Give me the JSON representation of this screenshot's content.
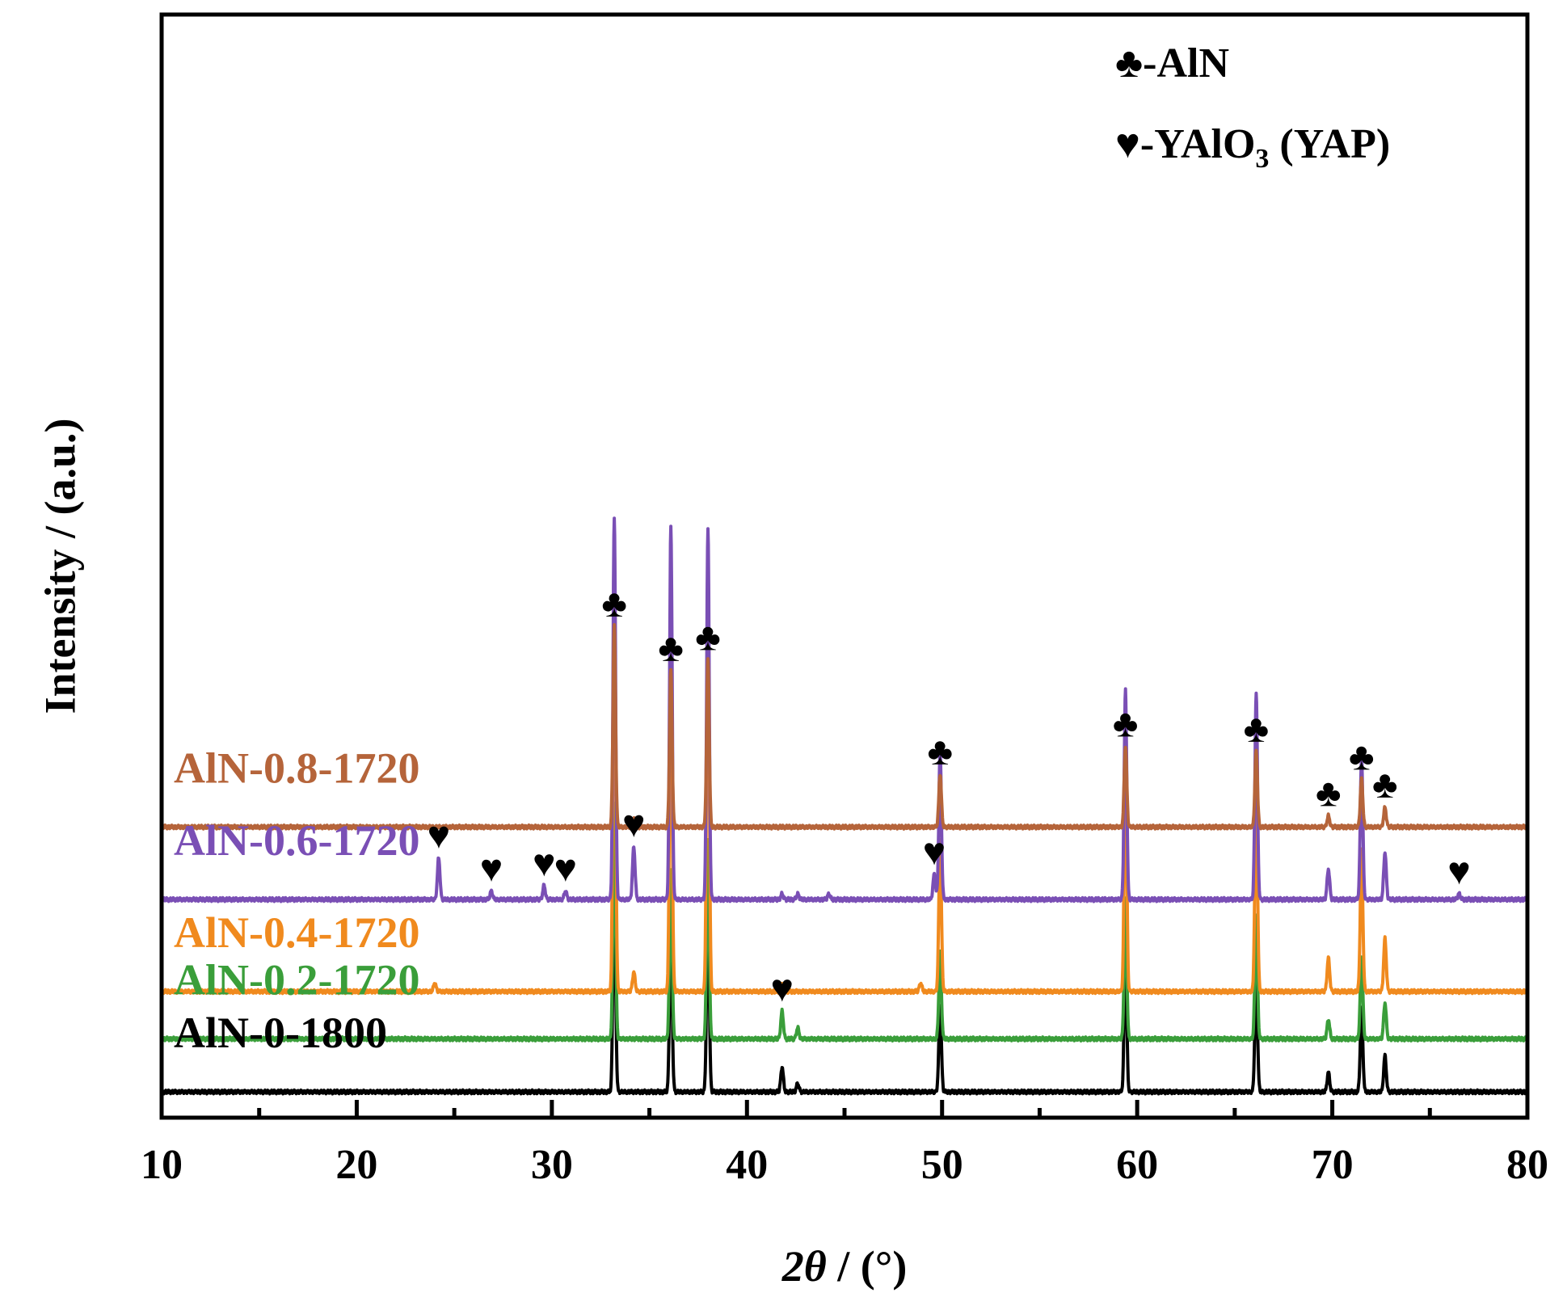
{
  "chart_data": {
    "type": "line",
    "title": "",
    "xlabel": "2θ / (°)",
    "xlabel_parts": {
      "italic": "2θ",
      "rest": " / (°)"
    },
    "ylabel": "Intensity / (a.u.)",
    "xlim": [
      10,
      80
    ],
    "ylim": [
      0,
      1
    ],
    "x_ticks": [
      10,
      20,
      30,
      40,
      50,
      60,
      70,
      80
    ],
    "x_minor_ticks": [
      15,
      25,
      35,
      45,
      55,
      65,
      75
    ],
    "y_ticks_shown": false,
    "legend": {
      "position": "top-right",
      "entries": [
        {
          "symbol": "♣",
          "label": "-AlN"
        },
        {
          "symbol": "♥",
          "label_main": "-YAlO",
          "label_sub": "3",
          "label_tail": " (YAP)"
        }
      ]
    },
    "series": [
      {
        "name": "AlN-0-1800",
        "color": "#000000",
        "baseline": 0.02,
        "peaks": [
          [
            33.2,
            0.83
          ],
          [
            36.1,
            0.62
          ],
          [
            38.0,
            0.72
          ],
          [
            41.8,
            0.09
          ],
          [
            42.6,
            0.03
          ],
          [
            49.9,
            0.31
          ],
          [
            59.4,
            0.5
          ],
          [
            66.1,
            0.45
          ],
          [
            69.8,
            0.07
          ],
          [
            71.5,
            0.3
          ],
          [
            72.7,
            0.13
          ]
        ]
      },
      {
        "name": "AlN-0.2-1720",
        "color": "#3a9e3a",
        "baseline": 0.21,
        "peaks": [
          [
            33.2,
            0.85
          ],
          [
            36.1,
            0.61
          ],
          [
            38.0,
            0.72
          ],
          [
            41.8,
            0.1
          ],
          [
            42.6,
            0.04
          ],
          [
            49.9,
            0.31
          ],
          [
            59.4,
            0.5
          ],
          [
            66.1,
            0.45
          ],
          [
            69.8,
            0.07
          ],
          [
            71.5,
            0.3
          ],
          [
            72.7,
            0.13
          ]
        ]
      },
      {
        "name": "AlN-0.4-1720",
        "color": "#f08a1e",
        "baseline": 0.38,
        "peaks": [
          [
            24.0,
            0.03
          ],
          [
            33.2,
            1.62
          ],
          [
            34.2,
            0.07
          ],
          [
            36.1,
            1.3
          ],
          [
            38.0,
            1.55
          ],
          [
            41.8,
            0.03
          ],
          [
            48.9,
            0.03
          ],
          [
            49.9,
            0.55
          ],
          [
            59.4,
            0.85
          ],
          [
            66.1,
            0.78
          ],
          [
            69.8,
            0.12
          ],
          [
            71.5,
            0.51
          ],
          [
            72.7,
            0.19
          ]
        ]
      },
      {
        "name": "AlN-0.6-1720",
        "color": "#7a4fb5",
        "baseline": 0.71,
        "peaks": [
          [
            24.2,
            0.15
          ],
          [
            26.9,
            0.03
          ],
          [
            29.6,
            0.05
          ],
          [
            30.7,
            0.03
          ],
          [
            33.2,
            1.37
          ],
          [
            34.2,
            0.19
          ],
          [
            36.1,
            1.34
          ],
          [
            38.0,
            1.33
          ],
          [
            41.8,
            0.02
          ],
          [
            42.6,
            0.02
          ],
          [
            44.2,
            0.02
          ],
          [
            49.6,
            0.09
          ],
          [
            49.9,
            0.53
          ],
          [
            59.4,
            0.75
          ],
          [
            66.1,
            0.74
          ],
          [
            69.8,
            0.11
          ],
          [
            71.5,
            0.51
          ],
          [
            72.7,
            0.17
          ],
          [
            76.5,
            0.02
          ]
        ]
      },
      {
        "name": "AlN-0.8-1720",
        "color": "#b5643a",
        "baseline": 0.97,
        "peaks": [
          [
            33.2,
            0.72
          ],
          [
            34.2,
            0.03
          ],
          [
            36.1,
            0.56
          ],
          [
            38.0,
            0.6
          ],
          [
            49.9,
            0.19
          ],
          [
            59.4,
            0.29
          ],
          [
            66.1,
            0.27
          ],
          [
            69.8,
            0.04
          ],
          [
            71.5,
            0.17
          ],
          [
            72.7,
            0.07
          ]
        ]
      }
    ],
    "annotations": [
      {
        "series": "AlN-0.8-1720",
        "symbol": "♣",
        "x": 33.2,
        "y": 0.72
      },
      {
        "series": "AlN-0.8-1720",
        "symbol": "♣",
        "x": 36.1,
        "y": 0.56
      },
      {
        "series": "AlN-0.8-1720",
        "symbol": "♣",
        "x": 38.0,
        "y": 0.6
      },
      {
        "series": "AlN-0.8-1720",
        "symbol": "♣",
        "x": 49.9,
        "y": 0.19
      },
      {
        "series": "AlN-0.8-1720",
        "symbol": "♣",
        "x": 59.4,
        "y": 0.29
      },
      {
        "series": "AlN-0.8-1720",
        "symbol": "♣",
        "x": 66.1,
        "y": 0.27
      },
      {
        "series": "AlN-0.8-1720",
        "symbol": "♣",
        "x": 69.8,
        "y": 0.04
      },
      {
        "series": "AlN-0.8-1720",
        "symbol": "♣",
        "x": 71.5,
        "y": 0.17
      },
      {
        "series": "AlN-0.8-1720",
        "symbol": "♣",
        "x": 72.7,
        "y": 0.07
      },
      {
        "series": "AlN-0.6-1720",
        "symbol": "♥",
        "x": 24.2,
        "y": 0.15
      },
      {
        "series": "AlN-0.6-1720",
        "symbol": "♥",
        "x": 26.9,
        "y": 0.03
      },
      {
        "series": "AlN-0.6-1720",
        "symbol": "♥",
        "x": 29.6,
        "y": 0.05
      },
      {
        "series": "AlN-0.6-1720",
        "symbol": "♥",
        "x": 30.7,
        "y": 0.03
      },
      {
        "series": "AlN-0.6-1720",
        "symbol": "♥",
        "x": 34.2,
        "y": 0.19
      },
      {
        "series": "AlN-0.6-1720",
        "symbol": "♥",
        "x": 49.6,
        "y": 0.09
      },
      {
        "series": "AlN-0.6-1720",
        "symbol": "♥",
        "x": 76.5,
        "y": 0.02
      },
      {
        "series": "AlN-0.2-1720",
        "symbol": "♥",
        "x": 41.8,
        "y": 0.1
      }
    ]
  }
}
